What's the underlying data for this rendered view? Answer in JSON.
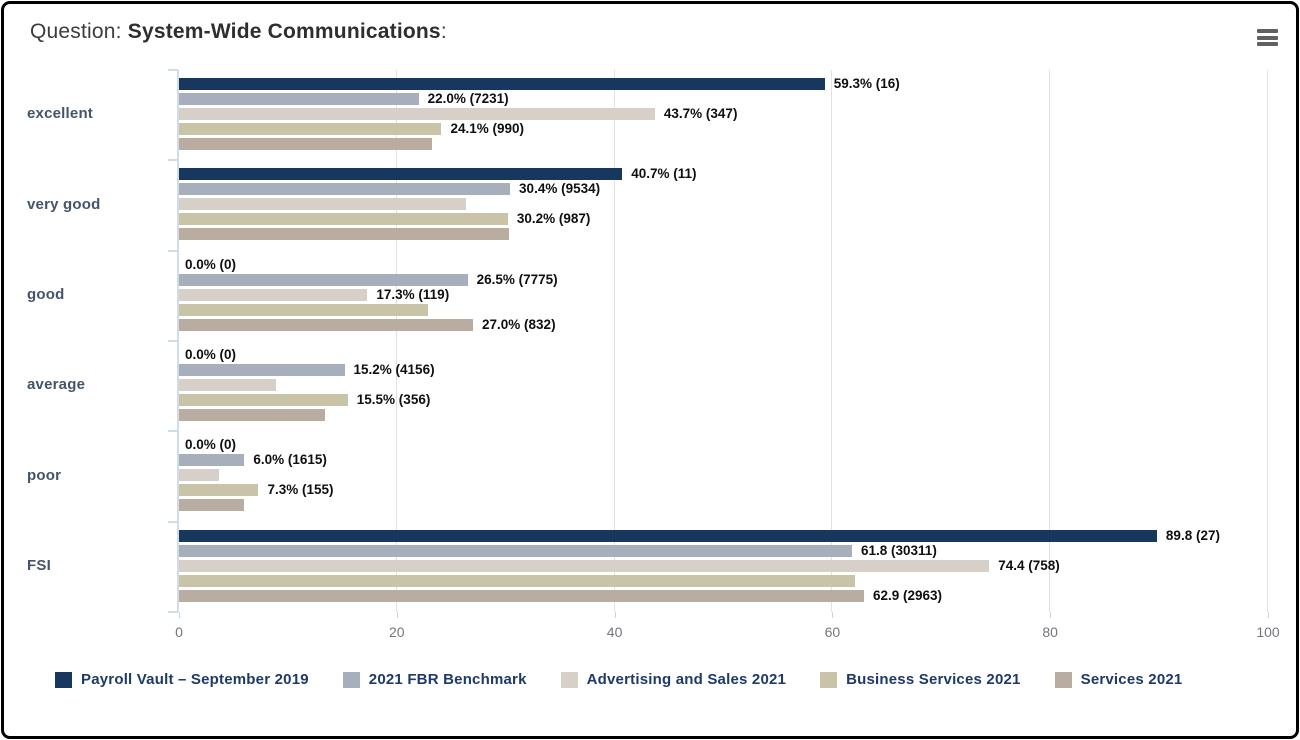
{
  "header": {
    "title_prefix": "Question: ",
    "title_main": "System-Wide Communications",
    "title_suffix": ":"
  },
  "colors": {
    "axis_line": "#cfdde9",
    "gridline": "#e2e2e2",
    "category_label": "#44546a",
    "legend_text": "#1e3a68",
    "data_label": "#0f0f0f",
    "tick_label": "#75757d"
  },
  "chart_data": {
    "type": "bar",
    "orientation": "horizontal",
    "title": "Question: System-Wide Communications:",
    "xlabel": "",
    "ylabel": "",
    "xlim": [
      0,
      100
    ],
    "x_ticks": [
      0,
      20,
      40,
      60,
      80,
      100
    ],
    "grid": true,
    "legend_position": "bottom",
    "categories": [
      "excellent",
      "very good",
      "good",
      "average",
      "poor",
      "FSI"
    ],
    "series": [
      {
        "name": "Payroll Vault – September 2019",
        "color": "#17375e",
        "values": [
          59.3,
          40.7,
          0.0,
          0.0,
          0.0,
          89.8
        ],
        "counts": [
          16,
          11,
          0,
          0,
          0,
          27
        ],
        "labels": [
          "59.3% (16)",
          "40.7% (11)",
          "0.0% (0)",
          "0.0% (0)",
          "0.0% (0)",
          "89.8 (27)"
        ]
      },
      {
        "name": "2021 FBR Benchmark",
        "color": "#a7afbc",
        "values": [
          22.0,
          30.4,
          26.5,
          15.2,
          6.0,
          61.8
        ],
        "counts": [
          7231,
          9534,
          7775,
          4156,
          1615,
          30311
        ],
        "labels": [
          "22.0% (7231)",
          "30.4% (9534)",
          "26.5% (7775)",
          "15.2% (4156)",
          "6.0% (1615)",
          "61.8 (30311)"
        ]
      },
      {
        "name": "Advertising and Sales 2021",
        "color": "#d7d0c9",
        "values": [
          43.7,
          26.4,
          17.3,
          8.9,
          3.7,
          74.4
        ],
        "counts": [
          347,
          null,
          119,
          null,
          null,
          758
        ],
        "labels": [
          "43.7% (347)",
          null,
          "17.3% (119)",
          null,
          null,
          "74.4 (758)"
        ]
      },
      {
        "name": "Business Services 2021",
        "color": "#c9c4a8",
        "values": [
          24.1,
          30.2,
          22.9,
          15.5,
          7.3,
          62.1
        ],
        "counts": [
          990,
          987,
          null,
          356,
          155,
          null
        ],
        "labels": [
          "24.1% (990)",
          "30.2% (987)",
          null,
          "15.5% (356)",
          "7.3% (155)",
          null
        ]
      },
      {
        "name": "Services 2021",
        "color": "#b8ada0",
        "values": [
          23.2,
          30.3,
          27.0,
          13.4,
          6.0,
          62.9
        ],
        "counts": [
          null,
          null,
          832,
          null,
          null,
          2963
        ],
        "labels": [
          null,
          null,
          "27.0% (832)",
          null,
          null,
          "62.9 (2963)"
        ]
      }
    ]
  }
}
